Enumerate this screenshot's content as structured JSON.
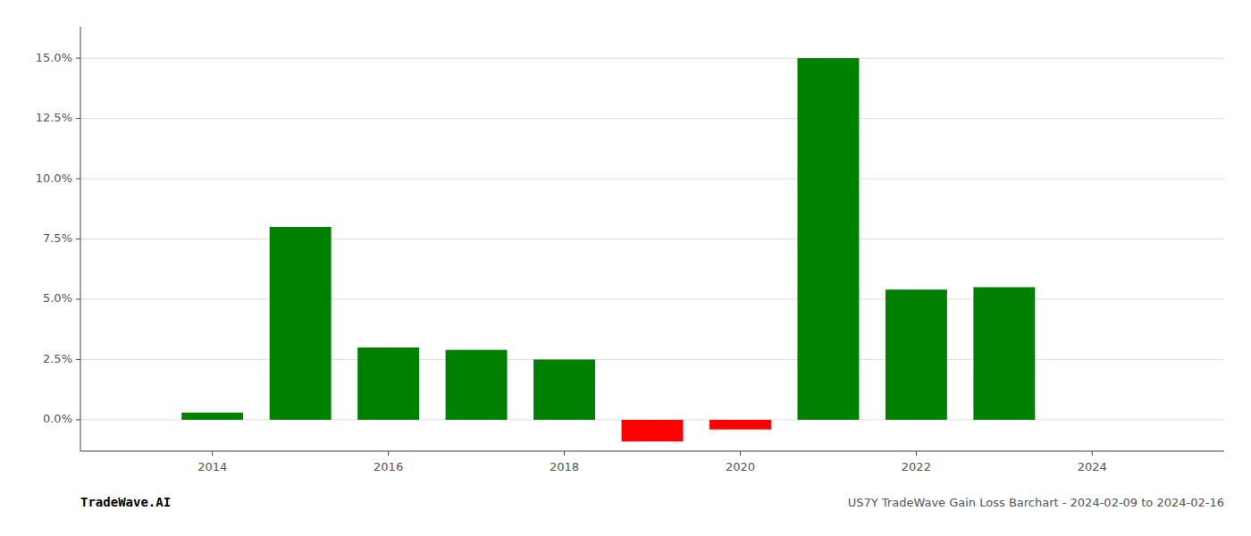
{
  "chart_data": {
    "type": "bar",
    "title": "US7Y TradeWave Gain Loss Barchart - 2024-02-09 to 2024-02-16",
    "annotations": [
      "TradeWave.AI"
    ],
    "x": [
      2014,
      2015,
      2016,
      2017,
      2018,
      2019,
      2020,
      2021,
      2022,
      2023
    ],
    "values": [
      0.003,
      0.08,
      0.03,
      0.029,
      0.025,
      -0.009,
      -0.004,
      0.15,
      0.054,
      0.055
    ],
    "colors": [
      "#008000",
      "#008000",
      "#008000",
      "#008000",
      "#008000",
      "#ff0000",
      "#ff0000",
      "#008000",
      "#008000",
      "#008000"
    ],
    "xlim": [
      2012.5,
      2025.5
    ],
    "xticks": [
      2014,
      2016,
      2018,
      2020,
      2022,
      2024
    ],
    "ylim": [
      -0.013,
      0.163
    ],
    "yticks": [
      {
        "value": 0.0,
        "label": "0.0%"
      },
      {
        "value": 0.025,
        "label": "2.5%"
      },
      {
        "value": 0.05,
        "label": "5.0%"
      },
      {
        "value": 0.075,
        "label": "7.5%"
      },
      {
        "value": 0.1,
        "label": "10.0%"
      },
      {
        "value": 0.125,
        "label": "12.5%"
      },
      {
        "value": 0.15,
        "label": "15.0%"
      }
    ],
    "grid": true
  }
}
